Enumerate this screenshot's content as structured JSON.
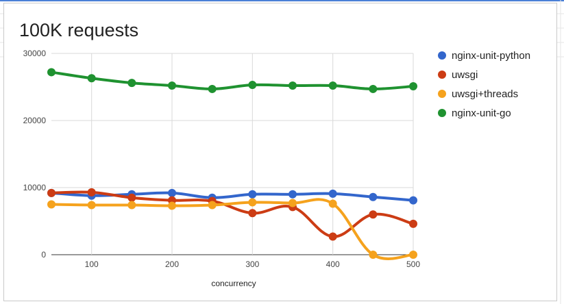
{
  "chart_data": {
    "type": "line",
    "title": "100K requests",
    "xlabel": "concurrency",
    "ylabel": "",
    "x": [
      50,
      100,
      150,
      200,
      250,
      300,
      350,
      400,
      450,
      500
    ],
    "xlim": [
      50,
      500
    ],
    "ylim": [
      0,
      30000
    ],
    "x_ticks": [
      100,
      200,
      300,
      400,
      500
    ],
    "y_ticks": [
      0,
      10000,
      20000,
      30000
    ],
    "grid": true,
    "smooth": true,
    "legend_position": "right",
    "series": [
      {
        "name": "nginx-unit-python",
        "color": "#3366cc",
        "values": [
          9200,
          8800,
          9000,
          9200,
          8500,
          9000,
          9000,
          9100,
          8600,
          8100
        ]
      },
      {
        "name": "uwsgi",
        "color": "#cc3c14",
        "values": [
          9200,
          9300,
          8500,
          8100,
          8000,
          6200,
          7100,
          2700,
          6000,
          4600
        ]
      },
      {
        "name": "uwsgi+threads",
        "color": "#f5a21d",
        "values": [
          7500,
          7400,
          7400,
          7300,
          7400,
          7800,
          7700,
          7600,
          0,
          0
        ]
      },
      {
        "name": "nginx-unit-go",
        "color": "#1f9230",
        "values": [
          27200,
          26300,
          25600,
          25200,
          24700,
          25300,
          25200,
          25200,
          24700,
          25100
        ]
      }
    ]
  }
}
